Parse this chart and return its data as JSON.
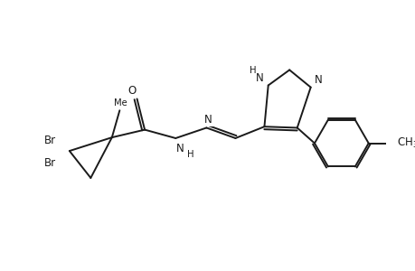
{
  "bg_color": "#ffffff",
  "line_color": "#1a1a1a",
  "line_width": 1.4,
  "font_size": 8.5,
  "fig_width": 4.6,
  "fig_height": 3.0,
  "dpi": 100,
  "xlim": [
    0,
    10
  ],
  "ylim": [
    0,
    6.5
  ]
}
